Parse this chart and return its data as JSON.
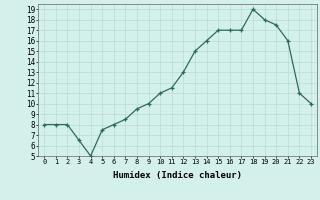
{
  "x": [
    0,
    1,
    2,
    3,
    4,
    5,
    6,
    7,
    8,
    9,
    10,
    11,
    12,
    13,
    14,
    15,
    16,
    17,
    18,
    19,
    20,
    21,
    22,
    23
  ],
  "y": [
    8,
    8,
    8,
    6.5,
    5,
    7.5,
    8,
    8.5,
    9.5,
    10,
    11,
    11.5,
    13,
    15,
    16,
    17,
    17,
    17,
    19,
    18,
    17.5,
    16,
    11,
    10
  ],
  "xlabel": "Humidex (Indice chaleur)",
  "line_color": "#2e6b5e",
  "marker": "+",
  "bg_color": "#d4f0ea",
  "grid_color": "#b8ddd6",
  "xlim": [
    -0.5,
    23.5
  ],
  "ylim": [
    5,
    19.5
  ],
  "yticks": [
    5,
    6,
    7,
    8,
    9,
    10,
    11,
    12,
    13,
    14,
    15,
    16,
    17,
    18,
    19
  ],
  "xticks": [
    0,
    1,
    2,
    3,
    4,
    5,
    6,
    7,
    8,
    9,
    10,
    11,
    12,
    13,
    14,
    15,
    16,
    17,
    18,
    19,
    20,
    21,
    22,
    23
  ]
}
